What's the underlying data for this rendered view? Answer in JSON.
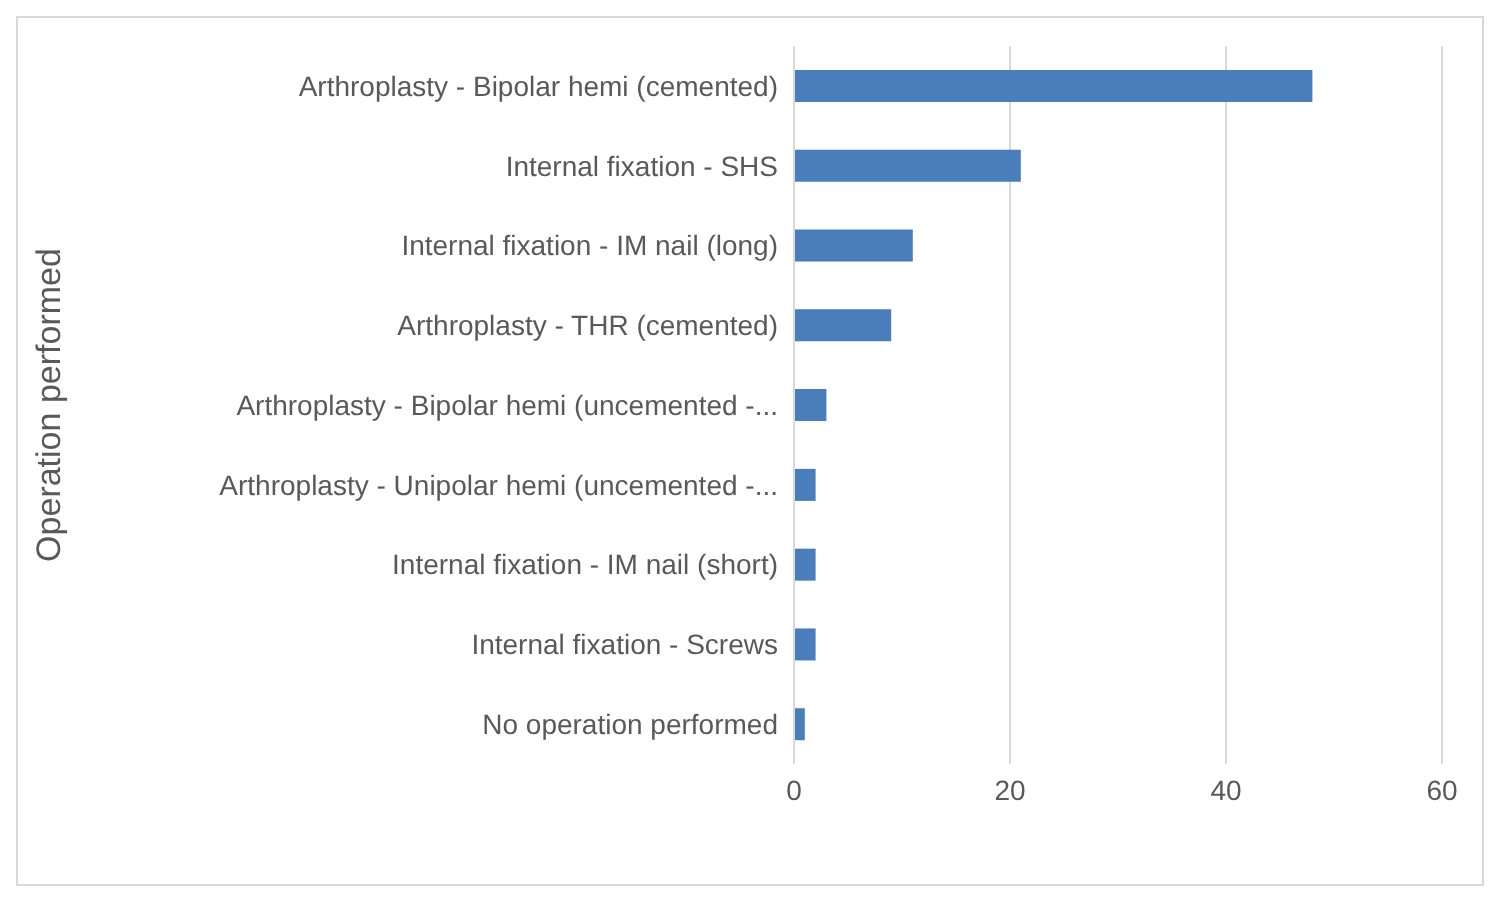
{
  "chart_data": {
    "type": "bar",
    "orientation": "horizontal",
    "ylabel": "Operation performed",
    "categories": [
      "Arthroplasty - Bipolar hemi (cemented)",
      "Internal fixation - SHS",
      "Internal fixation - IM nail (long)",
      "Arthroplasty - THR (cemented)",
      "Arthroplasty - Bipolar hemi (uncemented -...",
      "Arthroplasty - Unipolar hemi (uncemented -...",
      "Internal fixation - IM nail (short)",
      "Internal fixation - Screws",
      "No operation performed"
    ],
    "values": [
      48,
      21,
      11,
      9,
      3,
      2,
      2,
      2,
      1
    ],
    "color": "#4a7ebb",
    "xlim": [
      0,
      60
    ],
    "xticks": [
      0,
      20,
      40,
      60
    ],
    "grid": "x"
  }
}
